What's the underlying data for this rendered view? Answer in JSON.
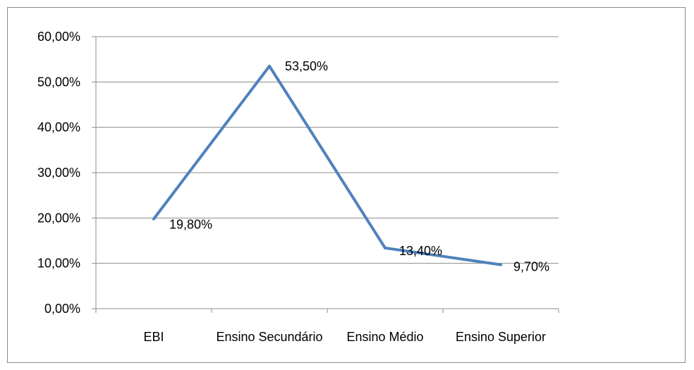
{
  "chart_data": {
    "type": "line",
    "categories": [
      "EBI",
      "Ensino Secundário",
      "Ensino Médio",
      "Ensino Superior"
    ],
    "series": [
      {
        "values": [
          19.8,
          53.5,
          13.4,
          9.7
        ],
        "data_labels": [
          "19,80%",
          "53,50%",
          "13,40%",
          "9,70%"
        ],
        "color": "#4f81bd"
      }
    ],
    "ylim": [
      0,
      60
    ],
    "yticks": [
      0,
      10,
      20,
      30,
      40,
      50,
      60
    ],
    "ytick_labels": [
      "0,00%",
      "10,00%",
      "20,00%",
      "30,00%",
      "40,00%",
      "50,00%",
      "60,00%"
    ],
    "grid": "horizontal",
    "legend": "none",
    "gridline_color": "#8c8c8c",
    "axis_color": "#8c8c8c"
  }
}
